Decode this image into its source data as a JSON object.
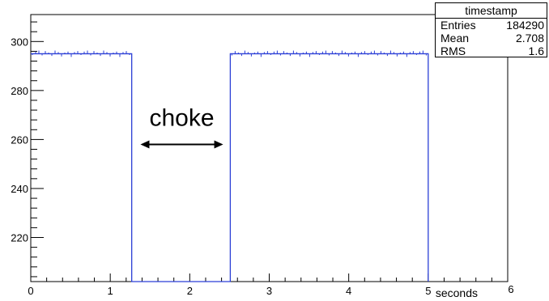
{
  "chart_data": {
    "type": "histogram",
    "xlabel": "seconds",
    "ylabel": "",
    "xlim": [
      0,
      6
    ],
    "ylim": [
      202,
      311
    ],
    "x_major_ticks": [
      "0",
      "1",
      "2",
      "3",
      "4",
      "5",
      "6"
    ],
    "y_major_ticks": [
      "220",
      "240",
      "260",
      "280",
      "300"
    ],
    "grid": false,
    "line_color": "#2b3fd6",
    "segments": [
      {
        "x_start": 0.0,
        "x_end": 1.27,
        "y": 295
      },
      {
        "x_start": 1.27,
        "x_end": 2.51,
        "y": 0
      },
      {
        "x_start": 2.51,
        "x_end": 5.0,
        "y": 295
      }
    ],
    "annotation": {
      "text": "choke",
      "arrow_from_x": 1.38,
      "arrow_to_x": 2.42,
      "arrow_y": 258
    },
    "stats_box": {
      "title": "timestamp",
      "rows": [
        {
          "label": "Entries",
          "value": "184290"
        },
        {
          "label": "Mean",
          "value": "2.708"
        },
        {
          "label": "RMS",
          "value": "1.6"
        }
      ]
    }
  }
}
